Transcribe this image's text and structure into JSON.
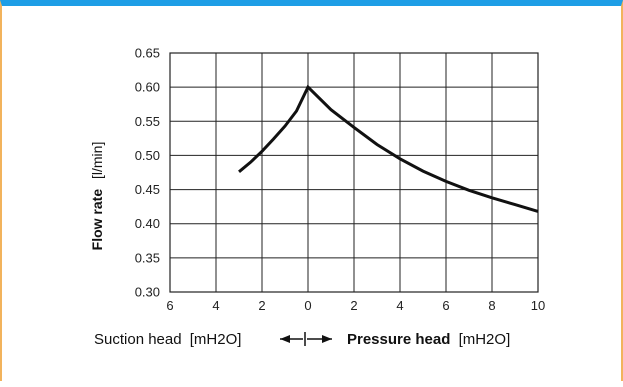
{
  "chart_data": {
    "type": "line",
    "ylabel": "Flow rate",
    "ylabel_unit": "[l/min]",
    "x_tick_labels": [
      "6",
      "4",
      "2",
      "0",
      "2",
      "4",
      "6",
      "8",
      "10"
    ],
    "y_tick_labels": [
      "0.30",
      "0.35",
      "0.40",
      "0.45",
      "0.50",
      "0.55",
      "0.60",
      "0.65"
    ],
    "xlim": [
      -6,
      10
    ],
    "ylim": [
      0.3,
      0.65
    ],
    "x_grid_step": 2,
    "y_grid_step": 0.05,
    "grid": true,
    "x_caption": {
      "suction_label": "Suction head",
      "suction_unit": "[mH2O]",
      "pressure_label": "Pressure head",
      "pressure_unit": "[mH2O]"
    },
    "series": [
      {
        "x": [
          -3,
          -2.5,
          -2,
          -1.5,
          -1,
          -0.5,
          0,
          1,
          2,
          3,
          4,
          5,
          6,
          7,
          8,
          9,
          10
        ],
        "y": [
          0.476,
          0.49,
          0.506,
          0.524,
          0.543,
          0.565,
          0.6,
          0.567,
          0.541,
          0.516,
          0.495,
          0.477,
          0.462,
          0.449,
          0.438,
          0.428,
          0.418
        ]
      }
    ]
  },
  "colors": {
    "top_border": "#1e9ee6",
    "side_border": "#f2b35c",
    "line": "#111111",
    "grid": "#222222"
  }
}
